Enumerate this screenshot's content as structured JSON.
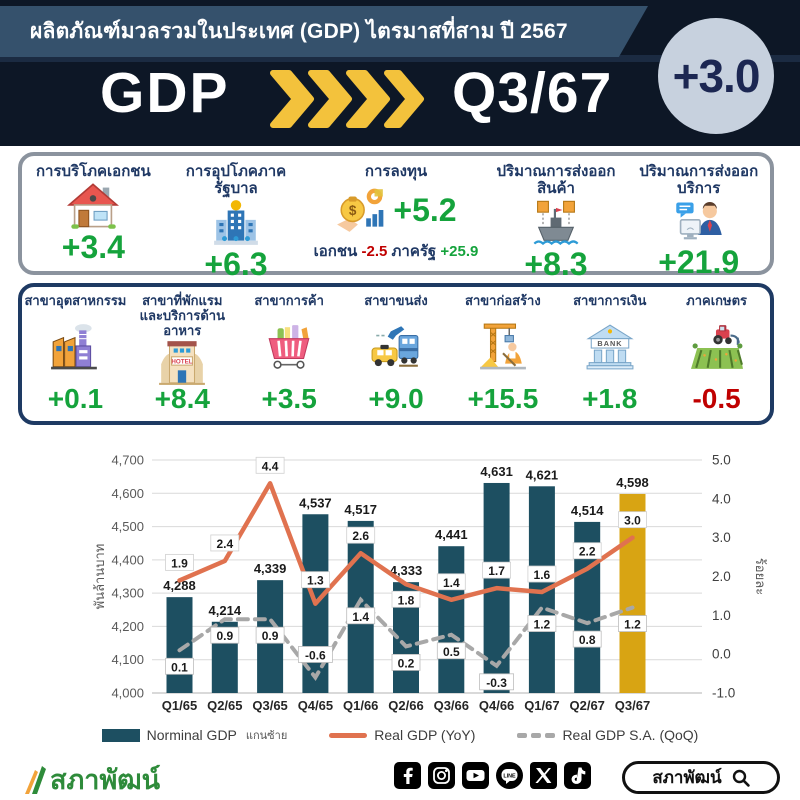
{
  "header": {
    "title": "ผลิตภัณฑ์มวลรวมในประเทศ (GDP) ไตรมาสที่สาม ปี 2567",
    "gdp_label": "GDP",
    "quarter_label": "Q3/67",
    "growth_badge": "+3.0"
  },
  "expenditure": {
    "items": [
      {
        "label": "การบริโภคเอกชน",
        "icon": "house",
        "value": "+3.4"
      },
      {
        "label": "การอุปโภคภาครัฐบาล",
        "icon": "government-building",
        "value": "+6.3"
      },
      {
        "label": "การลงทุน",
        "icon": "money-bag",
        "value": "+5.2",
        "private_label": "เอกชน",
        "private_value": "-2.5",
        "public_label": "ภาครัฐ",
        "public_value": "+25.9"
      },
      {
        "label": "ปริมาณการส่งออกสินค้า",
        "icon": "cargo-ship",
        "value": "+8.3"
      },
      {
        "label": "ปริมาณการส่งออกบริการ",
        "icon": "service-export",
        "value": "+21.9"
      }
    ]
  },
  "sectors": {
    "items": [
      {
        "label": "สาขาอุตสาหกรรม",
        "icon": "factory",
        "value": "+0.1"
      },
      {
        "label": "สาขาที่พักแรมและบริการด้านอาหาร",
        "icon": "hotel",
        "value": "+8.4"
      },
      {
        "label": "สาขาการค้า",
        "icon": "shopping-cart",
        "value": "+3.5"
      },
      {
        "label": "สาขาขนส่ง",
        "icon": "transport",
        "value": "+9.0"
      },
      {
        "label": "สาขาก่อสร้าง",
        "icon": "construction-crane",
        "value": "+15.5"
      },
      {
        "label": "สาขาการเงิน",
        "icon": "bank",
        "value": "+1.8"
      },
      {
        "label": "ภาคเกษตร",
        "icon": "tractor-field",
        "value": "-0.5"
      }
    ]
  },
  "chart_data": {
    "type": "combo-bar-line",
    "categories": [
      "Q1/65",
      "Q2/65",
      "Q3/65",
      "Q4/65",
      "Q1/66",
      "Q2/66",
      "Q3/66",
      "Q4/66",
      "Q1/67",
      "Q2/67",
      "Q3/67"
    ],
    "series": [
      {
        "name": "Norminal GDP",
        "note": "แกนซ้าย",
        "type": "bar",
        "axis": "left",
        "values": [
          4288,
          4214,
          4339,
          4537,
          4517,
          4333,
          4441,
          4631,
          4621,
          4514,
          4598
        ],
        "color": "#1d4f61",
        "last_color": "#d8a413"
      },
      {
        "name": "Real GDP (YoY)",
        "type": "line",
        "axis": "right",
        "values": [
          1.9,
          2.4,
          4.4,
          1.3,
          2.6,
          1.8,
          1.4,
          1.7,
          1.6,
          2.2,
          3.0
        ],
        "color": "#e0724f"
      },
      {
        "name": "Real GDP S.A. (QoQ)",
        "type": "line-dashed",
        "axis": "right",
        "values": [
          0.1,
          0.9,
          0.9,
          -0.6,
          1.4,
          0.2,
          0.5,
          -0.3,
          1.2,
          0.8,
          1.2
        ],
        "color": "#a8a8a8"
      }
    ],
    "left_axis": {
      "label": "พันล้านบาท",
      "min": 4000,
      "max": 4700,
      "step": 100
    },
    "right_axis": {
      "label": "ร้อยละ",
      "min": -1.0,
      "max": 5.0,
      "step": 1.0
    },
    "grid": true,
    "legend_position": "bottom"
  },
  "footer": {
    "logo_text": "สภาพัฒน์",
    "search_text": "สภาพัฒน์",
    "social": [
      "facebook",
      "instagram",
      "youtube",
      "line",
      "x",
      "tiktok"
    ]
  },
  "palette": {
    "header_blue": "#35516c",
    "banner_bg": "#0d1726",
    "badge_bg": "#c7d1de",
    "badge_text": "#1c2752",
    "positive_green": "#15a33c",
    "negative_red": "#c00000",
    "label_navy": "#1f3864",
    "chevron_gold": "#f3c23c",
    "row1_border": "#8b939e",
    "row2_border": "#1e3a63"
  }
}
